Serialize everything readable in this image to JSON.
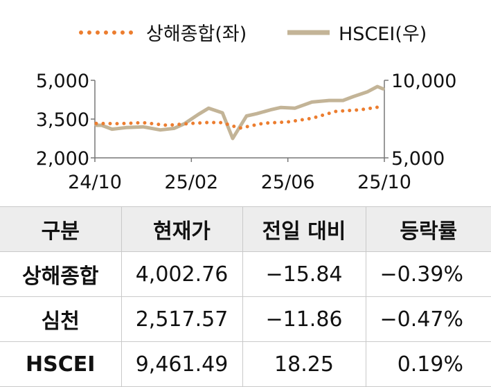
{
  "chart_data": {
    "type": "line",
    "legend": {
      "placement": "top",
      "entries": [
        {
          "label": "상해종합(좌)",
          "style": "dotted",
          "color": "#ec7d2f"
        },
        {
          "label": "HSCEI(우)",
          "style": "solid",
          "color": "#c3b497"
        }
      ]
    },
    "x_ticks": [
      "24/10",
      "25/02",
      "25/06",
      "25/10"
    ],
    "y_left": {
      "range": [
        2000,
        5000
      ],
      "ticks": [
        "2,000",
        "3,500",
        "5,000"
      ]
    },
    "y_right": {
      "range": [
        5000,
        10000
      ],
      "ticks": [
        "5,000",
        "10,000"
      ]
    },
    "series": [
      {
        "name": "상해종합(좌)",
        "axis": "left",
        "color": "#ec7d2f",
        "style": "dotted",
        "x": [
          "24/10",
          "24/11",
          "24/12",
          "25/01",
          "25/02",
          "25/03",
          "25/03",
          "25/04",
          "25/05",
          "25/06",
          "25/07",
          "25/08",
          "25/09",
          "25/10"
        ],
        "values": [
          3330,
          3320,
          3360,
          3260,
          3330,
          3370,
          3360,
          3150,
          3340,
          3390,
          3530,
          3800,
          3860,
          3990
        ]
      },
      {
        "name": "HSCEI(우)",
        "axis": "right",
        "color": "#c3b497",
        "style": "solid",
        "x": [
          "24/10",
          "24/10",
          "24/11",
          "24/11",
          "24/12",
          "25/01",
          "25/01",
          "25/02",
          "25/02",
          "25/03",
          "25/03",
          "25/04",
          "25/04",
          "25/05",
          "25/05",
          "25/06",
          "25/06",
          "25/07",
          "25/08",
          "25/08",
          "25/09",
          "25/09",
          "25/10",
          "25/10"
        ],
        "values": [
          7100,
          7100,
          6850,
          6950,
          7000,
          6800,
          6900,
          7200,
          7800,
          8200,
          7900,
          6250,
          7700,
          7850,
          8100,
          8250,
          8200,
          8600,
          8700,
          8700,
          8950,
          9250,
          9600,
          9450
        ]
      }
    ]
  },
  "table": {
    "headers": [
      "구분",
      "현재가",
      "전일 대비",
      "등락률"
    ],
    "rows": [
      [
        "상해종합",
        "4,002.76",
        "−15.84",
        "−0.39%"
      ],
      [
        "심천",
        "2,517.57",
        "−11.86",
        "−0.47%"
      ],
      [
        "HSCEI",
        "9,461.49",
        "18.25",
        "0.19%"
      ]
    ]
  }
}
